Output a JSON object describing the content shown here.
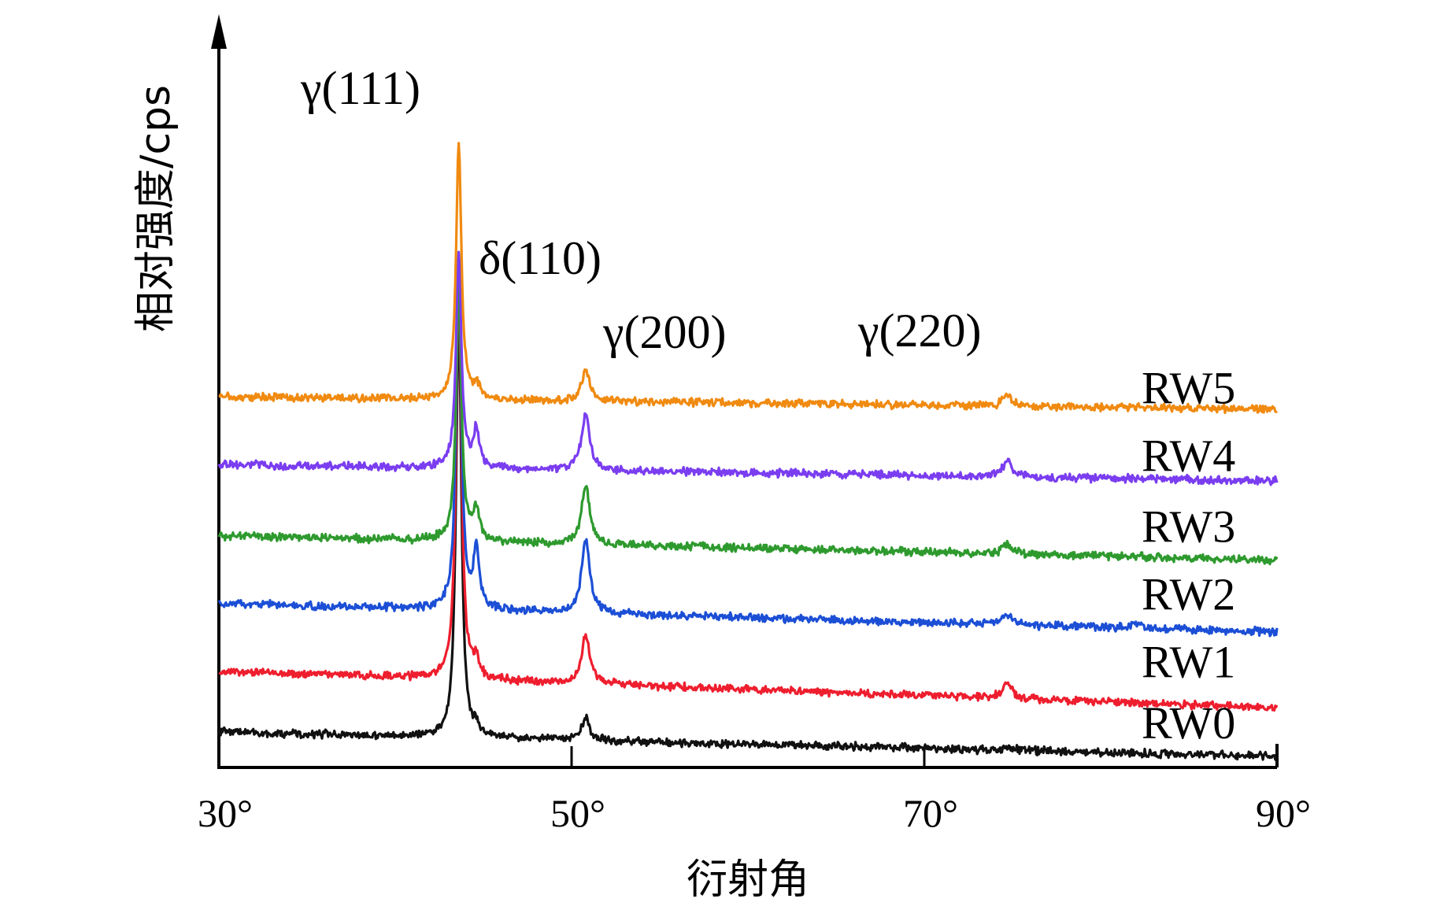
{
  "chart_data": {
    "type": "line",
    "title": "",
    "xlabel": "衍射角",
    "ylabel": "相对强度/cps",
    "xlim": [
      30,
      90
    ],
    "x_ticks": [
      {
        "value": 30,
        "label": "30°"
      },
      {
        "value": 50,
        "label": "50°"
      },
      {
        "value": 70,
        "label": "70°"
      },
      {
        "value": 90,
        "label": "90°"
      }
    ],
    "y_ticks": [],
    "grid": false,
    "peak_annotations": [
      {
        "label": "γ(111)",
        "x": 43.6
      },
      {
        "label": "δ(110)",
        "x": 44.6
      },
      {
        "label": "γ(200)",
        "x": 50.8
      },
      {
        "label": "γ(220)",
        "x": 74.7
      }
    ],
    "series": [
      {
        "name": "RW0",
        "color": "#111111",
        "baseline": 0.0,
        "baseline_slope": -0.006,
        "peaks": [
          {
            "x": 43.6,
            "h": 6.3,
            "w": 0.18
          },
          {
            "x": 44.6,
            "h": 0.15,
            "w": 0.15
          },
          {
            "x": 50.8,
            "h": 0.35,
            "w": 0.25
          },
          {
            "x": 74.7,
            "h": 0.05,
            "w": 0.3
          }
        ]
      },
      {
        "name": "RW1",
        "color": "#ee1e2e",
        "baseline": 0.9,
        "baseline_slope": -0.009,
        "peaks": [
          {
            "x": 43.6,
            "h": 6.0,
            "w": 0.18
          },
          {
            "x": 44.6,
            "h": 0.25,
            "w": 0.18
          },
          {
            "x": 50.8,
            "h": 0.7,
            "w": 0.28
          },
          {
            "x": 74.7,
            "h": 0.25,
            "w": 0.3
          }
        ]
      },
      {
        "name": "RW2",
        "color": "#1c4fd6",
        "baseline": 1.9,
        "baseline_slope": -0.007,
        "peaks": [
          {
            "x": 43.6,
            "h": 5.0,
            "w": 0.18
          },
          {
            "x": 44.6,
            "h": 0.85,
            "w": 0.2
          },
          {
            "x": 50.8,
            "h": 1.1,
            "w": 0.28
          },
          {
            "x": 74.7,
            "h": 0.15,
            "w": 0.3
          },
          {
            "x": 82.0,
            "h": 0.08,
            "w": 0.3
          }
        ]
      },
      {
        "name": "RW3",
        "color": "#2e9a2e",
        "baseline": 2.9,
        "baseline_slope": -0.006,
        "peaks": [
          {
            "x": 43.6,
            "h": 3.8,
            "w": 0.18
          },
          {
            "x": 44.6,
            "h": 0.45,
            "w": 0.2
          },
          {
            "x": 50.8,
            "h": 0.85,
            "w": 0.28
          },
          {
            "x": 74.7,
            "h": 0.15,
            "w": 0.3
          }
        ]
      },
      {
        "name": "RW4",
        "color": "#7a3df0",
        "baseline": 3.95,
        "baseline_slope": -0.004,
        "peaks": [
          {
            "x": 43.6,
            "h": 3.2,
            "w": 0.18
          },
          {
            "x": 44.6,
            "h": 0.55,
            "w": 0.2
          },
          {
            "x": 50.8,
            "h": 0.85,
            "w": 0.28
          },
          {
            "x": 74.7,
            "h": 0.25,
            "w": 0.3
          }
        ]
      },
      {
        "name": "RW5",
        "color": "#f08a10",
        "baseline": 4.95,
        "baseline_slope": -0.003,
        "peaks": [
          {
            "x": 43.6,
            "h": 3.8,
            "w": 0.18
          },
          {
            "x": 44.6,
            "h": 0.2,
            "w": 0.2
          },
          {
            "x": 50.8,
            "h": 0.45,
            "w": 0.28
          },
          {
            "x": 74.7,
            "h": 0.15,
            "w": 0.3
          }
        ]
      }
    ]
  }
}
